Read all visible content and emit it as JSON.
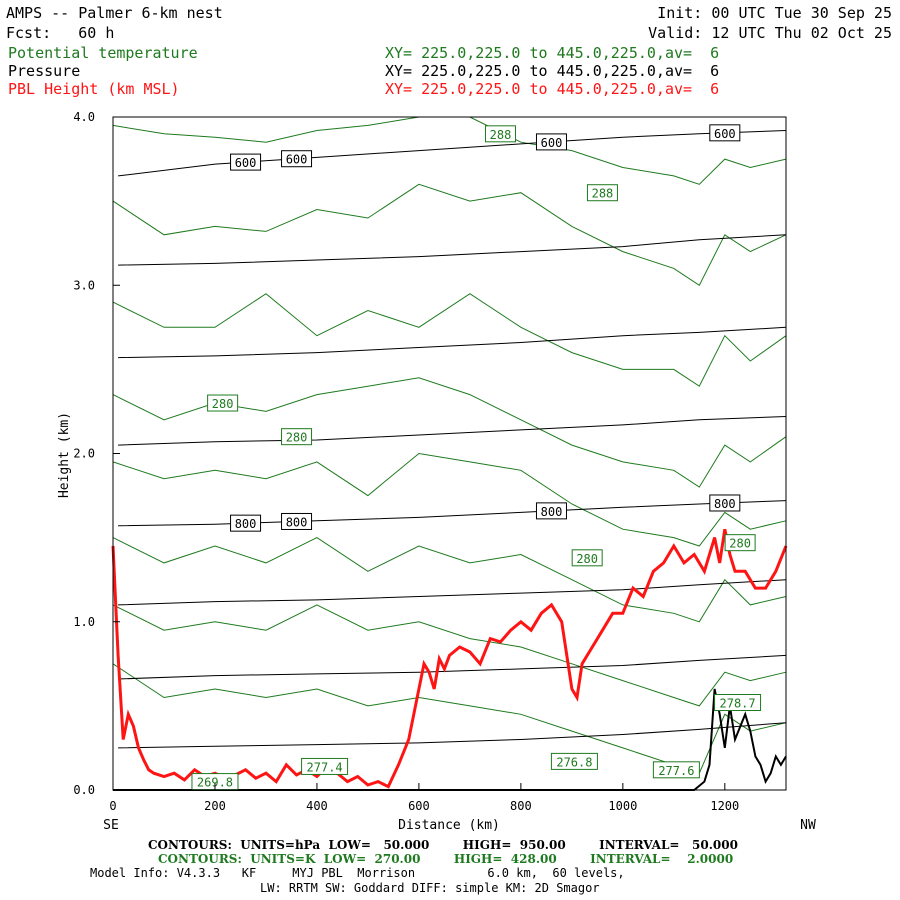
{
  "header": {
    "title": "AMPS -- Palmer 6-km nest",
    "fcst": "Fcst:   60 h",
    "init": "Init: 00 UTC Tue 30 Sep 25",
    "valid": "Valid: 12 UTC Thu 02 Oct 25",
    "fields": [
      {
        "name": "Potential temperature",
        "xy": "XY= 225.0,225.0 to 445.0,225.0,av=  6",
        "color": "#1e7a1e"
      },
      {
        "name": "Pressure",
        "xy": "XY= 225.0,225.0 to 445.0,225.0,av=  6",
        "color": "#000000"
      },
      {
        "name": "PBL Height (km MSL)",
        "xy": "XY= 225.0,225.0 to 445.0,225.0,av=  6",
        "color": "#ff1414"
      }
    ]
  },
  "chart_data": {
    "type": "line",
    "xlabel": "Distance (km)",
    "ylabel": "Height (km)",
    "xlim": [
      0,
      1320
    ],
    "ylim": [
      0,
      4.0
    ],
    "x_ticks": [
      0,
      200,
      400,
      600,
      800,
      1000,
      1200
    ],
    "y_ticks": [
      "0.0",
      "1.0",
      "2.0",
      "3.0",
      "4.0"
    ],
    "x_end_labels": {
      "left": "SE",
      "right": "NW"
    },
    "grid": false,
    "series": [
      {
        "name": "PBL Height (km MSL)",
        "color": "#ff1414",
        "x": [
          0,
          10,
          20,
          30,
          40,
          50,
          60,
          70,
          80,
          100,
          120,
          140,
          160,
          180,
          200,
          220,
          240,
          260,
          280,
          300,
          320,
          340,
          360,
          380,
          400,
          420,
          440,
          460,
          480,
          500,
          520,
          540,
          560,
          580,
          600,
          610,
          620,
          630,
          640,
          650,
          660,
          680,
          700,
          720,
          740,
          760,
          780,
          800,
          820,
          840,
          860,
          880,
          900,
          910,
          920,
          940,
          960,
          980,
          1000,
          1020,
          1040,
          1060,
          1080,
          1100,
          1120,
          1140,
          1160,
          1180,
          1190,
          1200,
          1210,
          1220,
          1240,
          1260,
          1280,
          1300,
          1320
        ],
        "values": [
          1.45,
          0.8,
          0.3,
          0.45,
          0.38,
          0.25,
          0.18,
          0.12,
          0.1,
          0.08,
          0.1,
          0.06,
          0.12,
          0.08,
          0.1,
          0.07,
          0.09,
          0.12,
          0.07,
          0.1,
          0.05,
          0.15,
          0.09,
          0.12,
          0.08,
          0.14,
          0.1,
          0.05,
          0.08,
          0.03,
          0.05,
          0.02,
          0.15,
          0.3,
          0.6,
          0.75,
          0.7,
          0.6,
          0.78,
          0.72,
          0.8,
          0.85,
          0.82,
          0.75,
          0.9,
          0.88,
          0.95,
          1.0,
          0.95,
          1.05,
          1.1,
          1.0,
          0.6,
          0.55,
          0.75,
          0.85,
          0.95,
          1.05,
          1.05,
          1.2,
          1.15,
          1.3,
          1.35,
          1.45,
          1.35,
          1.4,
          1.3,
          1.5,
          1.35,
          1.55,
          1.4,
          1.3,
          1.3,
          1.2,
          1.2,
          1.3,
          1.45
        ]
      },
      {
        "name": "Terrain",
        "color": "#000000",
        "x": [
          0,
          20,
          40,
          1140,
          1160,
          1170,
          1180,
          1190,
          1200,
          1210,
          1220,
          1240,
          1250,
          1260,
          1270,
          1280,
          1290,
          1300,
          1310,
          1320
        ],
        "values": [
          0.0,
          0.0,
          0.0,
          0.0,
          0.05,
          0.15,
          0.6,
          0.45,
          0.25,
          0.5,
          0.3,
          0.45,
          0.35,
          0.2,
          0.15,
          0.05,
          0.1,
          0.2,
          0.15,
          0.2
        ]
      }
    ],
    "pressure_contours": {
      "color": "#000000",
      "lines": [
        {
          "label": "600",
          "x": [
            10,
            200,
            400,
            600,
            800,
            1000,
            1150,
            1320
          ],
          "values": [
            3.65,
            3.72,
            3.76,
            3.8,
            3.84,
            3.88,
            3.9,
            3.92
          ]
        },
        {
          "label": "",
          "x": [
            10,
            200,
            400,
            600,
            800,
            1000,
            1150,
            1320
          ],
          "values": [
            3.12,
            3.13,
            3.15,
            3.17,
            3.2,
            3.23,
            3.27,
            3.3
          ]
        },
        {
          "label": "",
          "x": [
            10,
            200,
            400,
            600,
            800,
            1000,
            1150,
            1320
          ],
          "values": [
            2.57,
            2.58,
            2.6,
            2.63,
            2.66,
            2.7,
            2.72,
            2.75
          ]
        },
        {
          "label": "",
          "x": [
            10,
            200,
            400,
            600,
            800,
            1000,
            1150,
            1320
          ],
          "values": [
            2.05,
            2.07,
            2.08,
            2.11,
            2.14,
            2.17,
            2.2,
            2.22
          ]
        },
        {
          "label": "800",
          "x": [
            10,
            200,
            400,
            600,
            800,
            1000,
            1150,
            1320
          ],
          "values": [
            1.57,
            1.58,
            1.6,
            1.62,
            1.65,
            1.68,
            1.7,
            1.72
          ]
        },
        {
          "label": "",
          "x": [
            10,
            200,
            400,
            600,
            800,
            1000,
            1150,
            1320
          ],
          "values": [
            1.1,
            1.12,
            1.13,
            1.15,
            1.17,
            1.19,
            1.22,
            1.25
          ]
        },
        {
          "label": "",
          "x": [
            10,
            200,
            400,
            600,
            800,
            1000,
            1150,
            1320
          ],
          "values": [
            0.66,
            0.68,
            0.69,
            0.7,
            0.72,
            0.74,
            0.77,
            0.8
          ]
        },
        {
          "label": "",
          "x": [
            10,
            200,
            400,
            600,
            800,
            1000,
            1150,
            1320
          ],
          "values": [
            0.25,
            0.26,
            0.27,
            0.28,
            0.3,
            0.33,
            0.36,
            0.4
          ]
        }
      ]
    },
    "theta_contours": {
      "color": "#1e7a1e",
      "lines": [
        {
          "x": [
            0,
            100,
            200,
            300,
            400,
            500,
            600,
            700,
            800,
            900,
            1000,
            1100,
            1150,
            1200,
            1250,
            1320
          ],
          "values": [
            3.95,
            3.9,
            3.88,
            3.85,
            3.92,
            3.95,
            4.0,
            4.0,
            3.85,
            3.8,
            3.7,
            3.65,
            3.6,
            3.75,
            3.7,
            3.75
          ]
        },
        {
          "x": [
            0,
            100,
            200,
            300,
            400,
            500,
            600,
            700,
            800,
            900,
            1000,
            1100,
            1150,
            1200,
            1250,
            1320
          ],
          "values": [
            3.5,
            3.3,
            3.35,
            3.32,
            3.45,
            3.4,
            3.6,
            3.5,
            3.55,
            3.35,
            3.2,
            3.1,
            3.0,
            3.3,
            3.2,
            3.3
          ]
        },
        {
          "x": [
            0,
            100,
            200,
            300,
            400,
            500,
            600,
            700,
            800,
            900,
            1000,
            1100,
            1150,
            1200,
            1250,
            1320
          ],
          "values": [
            2.9,
            2.75,
            2.75,
            2.95,
            2.7,
            2.85,
            2.75,
            2.95,
            2.75,
            2.6,
            2.5,
            2.5,
            2.4,
            2.7,
            2.55,
            2.7
          ]
        },
        {
          "x": [
            0,
            100,
            200,
            300,
            400,
            500,
            600,
            700,
            800,
            900,
            1000,
            1100,
            1150,
            1200,
            1250,
            1320
          ],
          "values": [
            2.35,
            2.2,
            2.3,
            2.25,
            2.35,
            2.4,
            2.45,
            2.35,
            2.2,
            2.05,
            1.95,
            1.9,
            1.8,
            2.05,
            1.95,
            2.1
          ]
        },
        {
          "x": [
            0,
            100,
            200,
            300,
            400,
            500,
            600,
            700,
            800,
            900,
            1000,
            1100,
            1150,
            1200,
            1250,
            1320
          ],
          "values": [
            1.95,
            1.85,
            1.9,
            1.85,
            1.95,
            1.75,
            2.0,
            1.95,
            1.9,
            1.7,
            1.55,
            1.5,
            1.45,
            1.65,
            1.55,
            1.6
          ]
        },
        {
          "x": [
            0,
            100,
            200,
            300,
            400,
            500,
            600,
            700,
            800,
            900,
            1000,
            1100,
            1150,
            1200,
            1250,
            1320
          ],
          "values": [
            1.5,
            1.35,
            1.45,
            1.35,
            1.5,
            1.3,
            1.45,
            1.35,
            1.4,
            1.25,
            1.1,
            1.05,
            1.0,
            1.25,
            1.1,
            1.15
          ]
        },
        {
          "x": [
            0,
            100,
            200,
            300,
            400,
            500,
            600,
            700,
            800,
            900,
            1000,
            1100,
            1150,
            1200,
            1250,
            1320
          ],
          "values": [
            1.1,
            0.95,
            1.0,
            0.95,
            1.1,
            0.95,
            1.0,
            0.9,
            0.85,
            0.75,
            0.65,
            0.55,
            0.5,
            0.7,
            0.65,
            0.7
          ]
        },
        {
          "x": [
            0,
            100,
            200,
            300,
            400,
            500,
            600,
            700,
            800,
            900,
            1000,
            1100,
            1150,
            1200,
            1250,
            1320
          ],
          "values": [
            0.75,
            0.55,
            0.6,
            0.55,
            0.6,
            0.5,
            0.55,
            0.5,
            0.45,
            0.35,
            0.25,
            0.15,
            0.1,
            0.45,
            0.35,
            0.4
          ]
        }
      ],
      "labels": [
        {
          "text": "288",
          "x": 760,
          "y": 3.9
        },
        {
          "text": "288",
          "x": 960,
          "y": 3.55
        },
        {
          "text": "280",
          "x": 215,
          "y": 2.3
        },
        {
          "text": "280",
          "x": 360,
          "y": 2.1
        },
        {
          "text": "280",
          "x": 930,
          "y": 1.38
        },
        {
          "text": "280",
          "x": 1230,
          "y": 1.47
        },
        {
          "text": "269.8",
          "x": 200,
          "y": 0.05
        },
        {
          "text": "277.4",
          "x": 415,
          "y": 0.14
        },
        {
          "text": "276.8",
          "x": 905,
          "y": 0.17
        },
        {
          "text": "277.6",
          "x": 1105,
          "y": 0.12
        },
        {
          "text": "278.7",
          "x": 1225,
          "y": 0.52
        }
      ]
    }
  },
  "footer": {
    "contours_black": "CONTOURS:  UNITS=hPa  LOW=   50.000        HIGH=  950.00        INTERVAL=   50.000",
    "contours_green": "CONTOURS:  UNITS=K  LOW=  270.00        HIGH=  428.00        INTERVAL=    2.0000",
    "model_info": "Model Info: V4.3.3   KF     MYJ PBL  Morrison          6.0 km,  60 levels,",
    "model_info2": "LW: RRTM SW: Goddard DIFF: simple KM: 2D Smagor"
  }
}
